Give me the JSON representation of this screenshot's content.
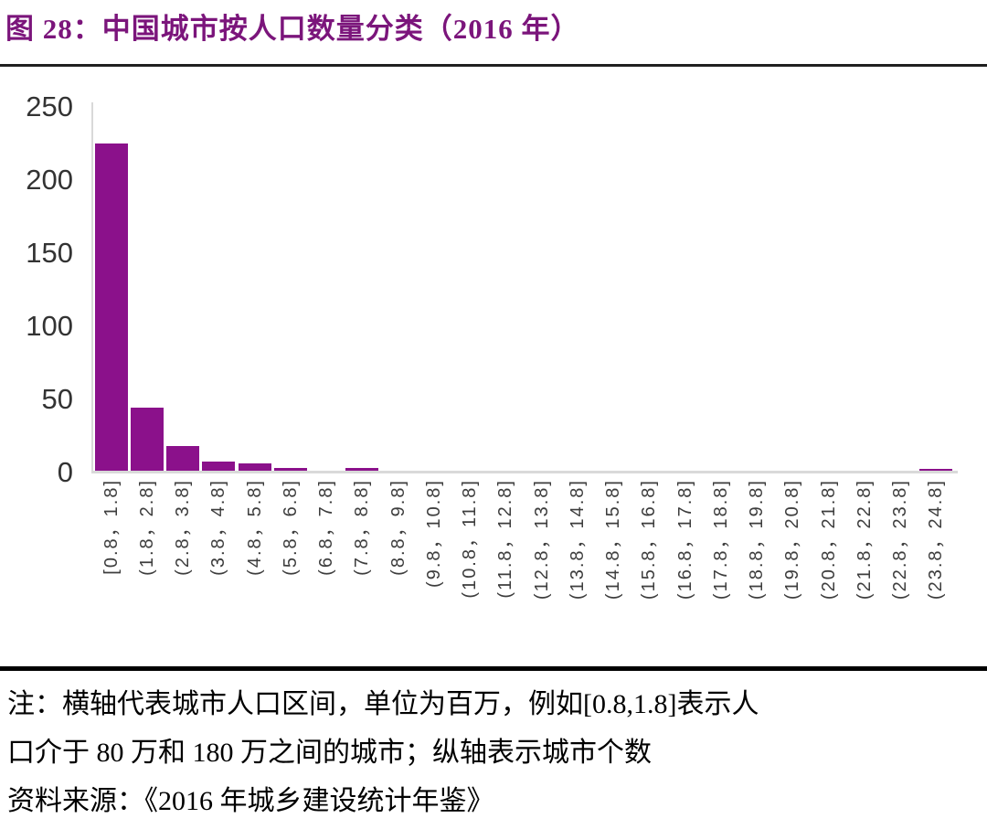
{
  "title": "图 28：中国城市按人口数量分类（2016 年）",
  "colors": {
    "accent_purple": "#7B157B",
    "bar_purple": "#8B118B",
    "axis_gray": "#D9D9D9",
    "tick_text": "#333333",
    "title_rule": "#1F1F1F",
    "note_rule": "#000000"
  },
  "chart_data": {
    "type": "bar",
    "title": "图 28：中国城市按人口数量分类（2016 年）",
    "categories": [
      "[0.8，1.8]",
      "(1.8，2.8]",
      "(2.8，3.8]",
      "(3.8，4.8]",
      "(4.8，5.8]",
      "(5.8，6.8]",
      "(6.8，7.8]",
      "(7.8，8.8]",
      "(8.8，9.8]",
      "(9.8，10.8]",
      "(10.8，11.8]",
      "(11.8，12.8]",
      "(12.8，13.8]",
      "(13.8，14.8]",
      "(14.8，15.8]",
      "(15.8，16.8]",
      "(16.8，17.8]",
      "(17.8，18.8]",
      "(18.8，19.8]",
      "(19.8，20.8]",
      "(20.8，21.8]",
      "(21.8，22.8]",
      "(22.8，23.8]",
      "(23.8，24.8]"
    ],
    "values": [
      224,
      43,
      17,
      6,
      5,
      2,
      0,
      2,
      0,
      0,
      0,
      0,
      0,
      0,
      0,
      0,
      0,
      0,
      0,
      0,
      0,
      0,
      0,
      1
    ],
    "xlabel": "",
    "ylabel": "",
    "ylim": [
      0,
      250
    ],
    "yticks": [
      0,
      50,
      100,
      150,
      200,
      250
    ],
    "grid": false,
    "legend": false,
    "bar_color": "#8B118B"
  },
  "note": {
    "line1": "注：横轴代表城市人口区间，单位为百万，例如[0.8,1.8]表示人",
    "line2": "口介于 80 万和 180 万之间的城市；纵轴表示城市个数",
    "source": "资料来源：《2016 年城乡建设统计年鉴》"
  }
}
